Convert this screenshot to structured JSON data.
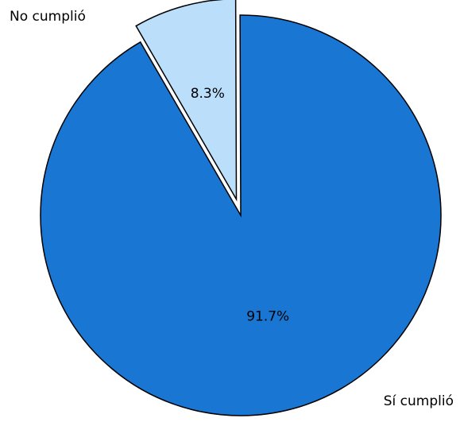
{
  "chart_data": {
    "type": "pie",
    "categories": [
      "No cumplió",
      "Sí cumplió"
    ],
    "values": [
      8.3,
      91.7
    ],
    "labels": [
      "8.3%",
      "91.7%"
    ],
    "colors": [
      "#bbdefb",
      "#1976d2"
    ],
    "exploded": [
      true,
      false
    ],
    "title": "",
    "legend": "none"
  }
}
